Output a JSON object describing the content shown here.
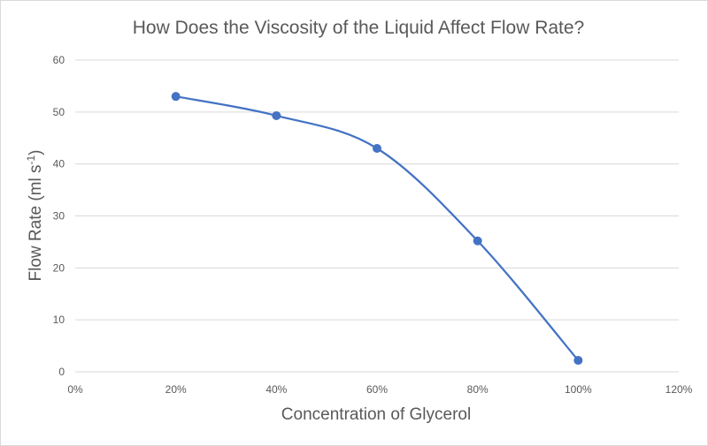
{
  "chart_data": {
    "type": "scatter",
    "title": "How Does the Viscosity of the Liquid Affect Flow Rate?",
    "xlabel": "Concentration of Glycerol",
    "ylabel": "Flow Rate (ml s-1)",
    "ylabel_main": "Flow Rate (ml s",
    "ylabel_sup": "-1",
    "ylabel_end": ")",
    "xlim": [
      0,
      1.2
    ],
    "ylim": [
      0,
      60
    ],
    "x_ticks": [
      "0%",
      "20%",
      "40%",
      "60%",
      "80%",
      "100%",
      "120%"
    ],
    "y_ticks": [
      "0",
      "10",
      "20",
      "30",
      "40",
      "50",
      "60"
    ],
    "grid": true,
    "smooth": true,
    "legend": "none",
    "series": [
      {
        "x": [
          0.2,
          0.4,
          0.6,
          0.8,
          1.0
        ],
        "y": [
          53,
          49.3,
          43,
          25.2,
          2.2
        ],
        "color": "#4472c4"
      }
    ]
  }
}
